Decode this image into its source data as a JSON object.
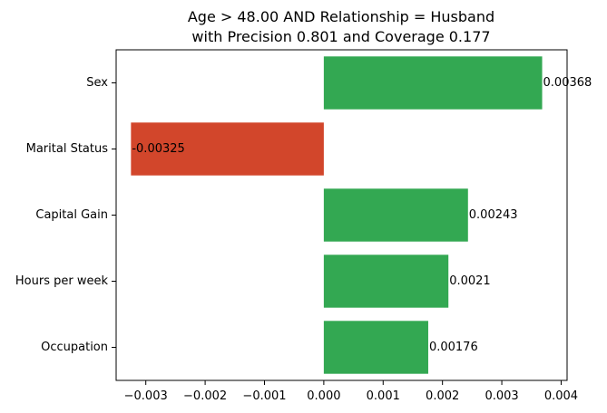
{
  "chart_data": {
    "type": "bar",
    "orientation": "horizontal",
    "title_line1": "Age > 48.00 AND Relationship = Husband",
    "title_line2": "with Precision 0.801 and Coverage 0.177",
    "categories": [
      "Sex",
      "Marital Status",
      "Capital Gain",
      "Hours per week",
      "Occupation"
    ],
    "values": [
      0.00368,
      -0.00325,
      0.00243,
      0.0021,
      0.00176
    ],
    "value_labels": [
      "0.00368",
      "-0.00325",
      "0.00243",
      "0.0021",
      "0.00176"
    ],
    "xlim": [
      -0.0035,
      0.0041
    ],
    "xticks": [
      -0.003,
      -0.002,
      -0.001,
      0.0,
      0.001,
      0.002,
      0.003,
      0.004
    ],
    "xtick_labels": [
      "−0.003",
      "−0.002",
      "−0.001",
      "0.000",
      "0.001",
      "0.002",
      "0.003",
      "0.004"
    ],
    "xlabel": "",
    "ylabel": "",
    "grid": false,
    "colors": {
      "positive": "#33a852",
      "negative": "#d2462b"
    }
  }
}
